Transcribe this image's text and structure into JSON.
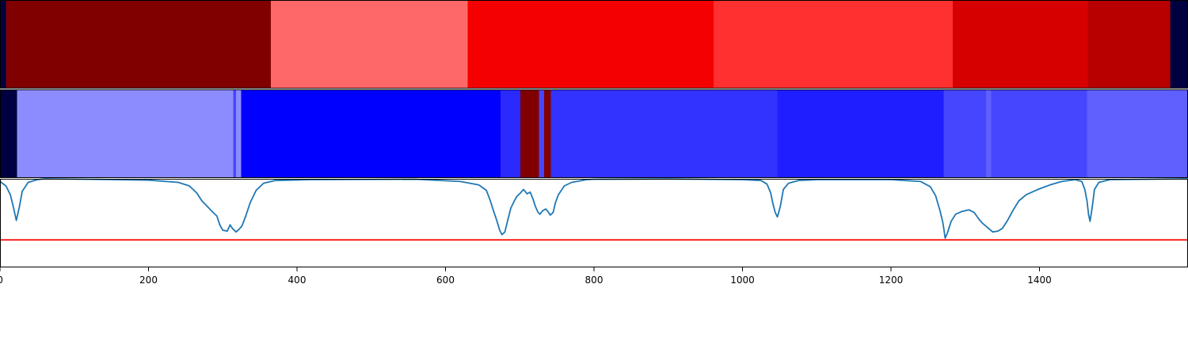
{
  "chart_data": [
    {
      "type": "heatmap",
      "xlim": [
        0,
        1600
      ],
      "colormap": "seismic",
      "segments": [
        {
          "start": 0,
          "end": 8,
          "color": "#000040"
        },
        {
          "start": 8,
          "end": 365,
          "color": "#800000"
        },
        {
          "start": 365,
          "end": 630,
          "color": "#ff6868"
        },
        {
          "start": 630,
          "end": 961,
          "color": "#f50000"
        },
        {
          "start": 961,
          "end": 1283,
          "color": "#ff3030"
        },
        {
          "start": 1283,
          "end": 1465,
          "color": "#d60000"
        },
        {
          "start": 1465,
          "end": 1576,
          "color": "#b80000"
        },
        {
          "start": 1576,
          "end": 1600,
          "color": "#000040"
        }
      ]
    },
    {
      "type": "heatmap",
      "xlim": [
        0,
        1600
      ],
      "colormap": "seismic",
      "segments": [
        {
          "start": 0,
          "end": 23,
          "color": "#000040"
        },
        {
          "start": 23,
          "end": 314,
          "color": "#8c8cff"
        },
        {
          "start": 314,
          "end": 318,
          "color": "#4646ff"
        },
        {
          "start": 318,
          "end": 325,
          "color": "#8c8cff"
        },
        {
          "start": 325,
          "end": 674,
          "color": "#0000ff"
        },
        {
          "start": 674,
          "end": 701,
          "color": "#2a2aff"
        },
        {
          "start": 701,
          "end": 726,
          "color": "#800000"
        },
        {
          "start": 726,
          "end": 733,
          "color": "#4646ff"
        },
        {
          "start": 733,
          "end": 742,
          "color": "#800000"
        },
        {
          "start": 742,
          "end": 1047,
          "color": "#3333ff"
        },
        {
          "start": 1047,
          "end": 1271,
          "color": "#1e1eff"
        },
        {
          "start": 1271,
          "end": 1328,
          "color": "#4646ff"
        },
        {
          "start": 1328,
          "end": 1335,
          "color": "#6060ff"
        },
        {
          "start": 1335,
          "end": 1464,
          "color": "#4646ff"
        },
        {
          "start": 1464,
          "end": 1600,
          "color": "#6060ff"
        }
      ]
    },
    {
      "type": "line",
      "xlim": [
        0,
        1600
      ],
      "ylim": [
        0,
        1
      ],
      "x_ticks": [
        0,
        200,
        400,
        600,
        800,
        1000,
        1200,
        1400
      ],
      "x_tick_labels": [
        "0",
        "200",
        "400",
        "600",
        "800",
        "1000",
        "1200",
        "1400"
      ],
      "threshold": {
        "value": 0.31,
        "color": "#ff0000"
      },
      "series": [
        {
          "color": "#1f77b4",
          "points": [
            [
              0,
              0.97
            ],
            [
              8,
              0.92
            ],
            [
              14,
              0.82
            ],
            [
              18,
              0.68
            ],
            [
              22,
              0.53
            ],
            [
              26,
              0.68
            ],
            [
              30,
              0.86
            ],
            [
              38,
              0.96
            ],
            [
              50,
              0.99
            ],
            [
              60,
              1.0
            ],
            [
              120,
              0.995
            ],
            [
              200,
              0.985
            ],
            [
              240,
              0.96
            ],
            [
              255,
              0.92
            ],
            [
              265,
              0.84
            ],
            [
              272,
              0.75
            ],
            [
              280,
              0.68
            ],
            [
              287,
              0.62
            ],
            [
              292,
              0.58
            ],
            [
              296,
              0.48
            ],
            [
              300,
              0.42
            ],
            [
              306,
              0.41
            ],
            [
              310,
              0.48
            ],
            [
              313,
              0.44
            ],
            [
              318,
              0.4
            ],
            [
              322,
              0.43
            ],
            [
              326,
              0.47
            ],
            [
              331,
              0.58
            ],
            [
              337,
              0.73
            ],
            [
              345,
              0.87
            ],
            [
              355,
              0.95
            ],
            [
              370,
              0.98
            ],
            [
              420,
              0.99
            ],
            [
              560,
              0.995
            ],
            [
              620,
              0.97
            ],
            [
              645,
              0.93
            ],
            [
              655,
              0.87
            ],
            [
              660,
              0.76
            ],
            [
              665,
              0.63
            ],
            [
              669,
              0.53
            ],
            [
              673,
              0.42
            ],
            [
              676,
              0.37
            ],
            [
              680,
              0.4
            ],
            [
              684,
              0.54
            ],
            [
              688,
              0.67
            ],
            [
              692,
              0.74
            ],
            [
              696,
              0.8
            ],
            [
              701,
              0.84
            ],
            [
              705,
              0.88
            ],
            [
              710,
              0.83
            ],
            [
              714,
              0.85
            ],
            [
              718,
              0.77
            ],
            [
              721,
              0.69
            ],
            [
              724,
              0.63
            ],
            [
              727,
              0.6
            ],
            [
              731,
              0.64
            ],
            [
              735,
              0.66
            ],
            [
              738,
              0.63
            ],
            [
              741,
              0.59
            ],
            [
              745,
              0.62
            ],
            [
              748,
              0.73
            ],
            [
              752,
              0.82
            ],
            [
              760,
              0.92
            ],
            [
              770,
              0.96
            ],
            [
              790,
              0.99
            ],
            [
              800,
              0.995
            ],
            [
              900,
              0.998
            ],
            [
              1000,
              0.99
            ],
            [
              1025,
              0.98
            ],
            [
              1033,
              0.94
            ],
            [
              1038,
              0.84
            ],
            [
              1041,
              0.72
            ],
            [
              1044,
              0.62
            ],
            [
              1047,
              0.57
            ],
            [
              1051,
              0.69
            ],
            [
              1055,
              0.88
            ],
            [
              1062,
              0.95
            ],
            [
              1075,
              0.98
            ],
            [
              1100,
              0.99
            ],
            [
              1200,
              0.99
            ],
            [
              1240,
              0.97
            ],
            [
              1253,
              0.91
            ],
            [
              1260,
              0.81
            ],
            [
              1266,
              0.64
            ],
            [
              1270,
              0.5
            ],
            [
              1273,
              0.33
            ],
            [
              1276,
              0.39
            ],
            [
              1281,
              0.52
            ],
            [
              1287,
              0.6
            ],
            [
              1295,
              0.63
            ],
            [
              1305,
              0.65
            ],
            [
              1312,
              0.62
            ],
            [
              1318,
              0.55
            ],
            [
              1323,
              0.5
            ],
            [
              1330,
              0.45
            ],
            [
              1337,
              0.4
            ],
            [
              1344,
              0.41
            ],
            [
              1350,
              0.44
            ],
            [
              1357,
              0.53
            ],
            [
              1364,
              0.64
            ],
            [
              1372,
              0.75
            ],
            [
              1382,
              0.82
            ],
            [
              1398,
              0.88
            ],
            [
              1414,
              0.93
            ],
            [
              1430,
              0.97
            ],
            [
              1448,
              0.99
            ],
            [
              1457,
              0.97
            ],
            [
              1461,
              0.88
            ],
            [
              1464,
              0.75
            ],
            [
              1466,
              0.6
            ],
            [
              1468,
              0.52
            ],
            [
              1471,
              0.68
            ],
            [
              1474,
              0.88
            ],
            [
              1480,
              0.96
            ],
            [
              1495,
              0.99
            ],
            [
              1600,
              1.0
            ]
          ]
        }
      ]
    }
  ]
}
